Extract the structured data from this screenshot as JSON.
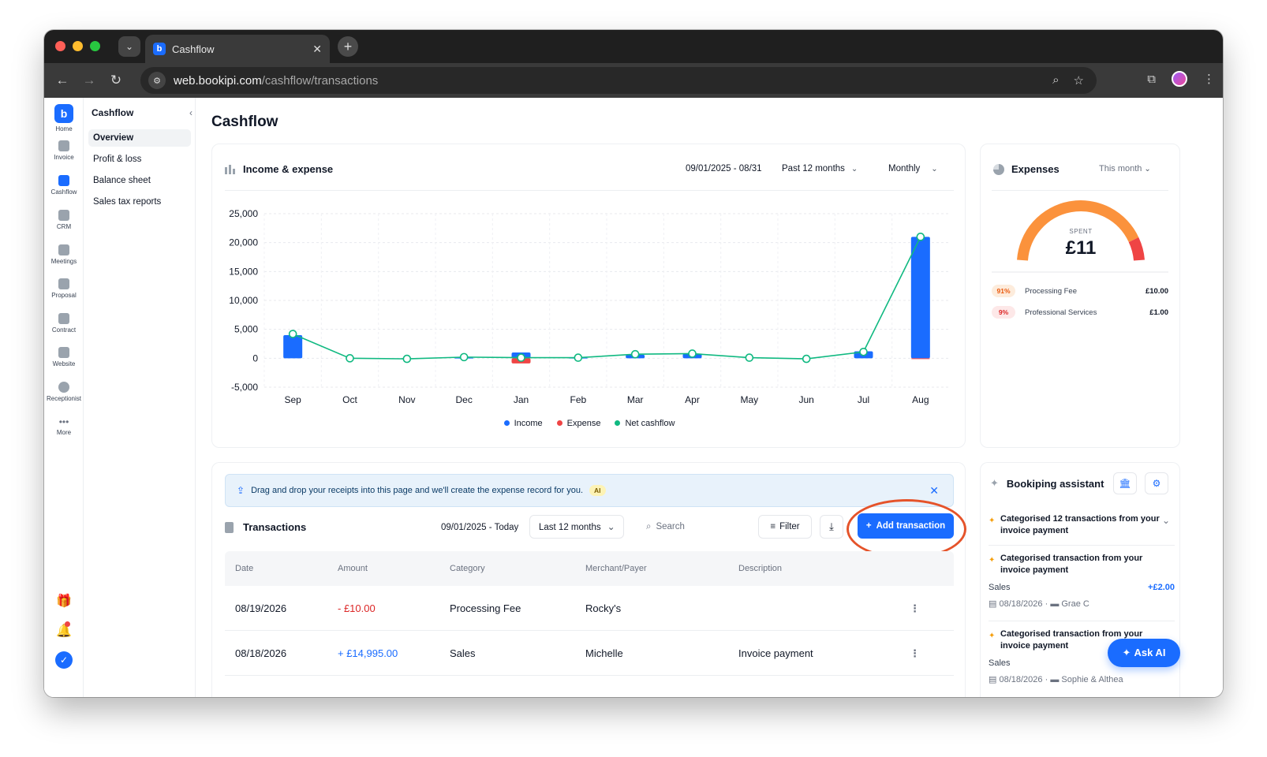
{
  "browser": {
    "tab_title": "Cashflow",
    "url_host": "web.bookipi.com",
    "url_path": "/cashflow/transactions"
  },
  "rail": {
    "items": [
      "Home",
      "Invoice",
      "Cashflow",
      "CRM",
      "Meetings",
      "Proposal",
      "Contract",
      "Website",
      "Receptionist",
      "More"
    ],
    "active": "Cashflow"
  },
  "subnav": {
    "title": "Cashflow",
    "items": [
      "Overview",
      "Profit & loss",
      "Balance sheet",
      "Sales tax reports"
    ],
    "active": "Overview"
  },
  "page": {
    "title": "Cashflow"
  },
  "income_expense": {
    "title": "Income & expense",
    "date_range": "09/01/2025 - 08/31",
    "period": "Past 12 months",
    "frequency": "Monthly",
    "legend": [
      "Income",
      "Expense",
      "Net cashflow"
    ]
  },
  "chart_data": {
    "type": "bar",
    "categories": [
      "Sep",
      "Oct",
      "Nov",
      "Dec",
      "Jan",
      "Feb",
      "Mar",
      "Apr",
      "May",
      "Jun",
      "Jul",
      "Aug"
    ],
    "series": [
      {
        "name": "Income",
        "type": "bar",
        "values": [
          4000,
          0,
          0,
          100,
          1000,
          100,
          600,
          800,
          0,
          0,
          1200,
          21000
        ]
      },
      {
        "name": "Expense",
        "type": "bar",
        "values": [
          0,
          0,
          0,
          0,
          -900,
          0,
          0,
          0,
          0,
          0,
          0,
          -100
        ]
      },
      {
        "name": "Net cashflow",
        "type": "line",
        "values": [
          4200,
          0,
          -100,
          200,
          100,
          100,
          700,
          800,
          100,
          -100,
          1100,
          21000
        ]
      }
    ],
    "yticks": [
      "25,000",
      "20,000",
      "15,000",
      "10,000",
      "5,000",
      "0",
      "-5,000"
    ],
    "ylim": [
      -5000,
      25000
    ],
    "grid": true,
    "legend_position": "bottom",
    "colors": {
      "income": "#1a6cff",
      "expense": "#ef4444",
      "net": "#10b981"
    }
  },
  "expenses": {
    "title": "Expenses",
    "filter": "This month",
    "spent_label": "SPENT",
    "spent_value": "£11",
    "gauge_fraction": 1.0,
    "items": [
      {
        "pct": "91%",
        "name": "Processing Fee",
        "amount": "£10.00"
      },
      {
        "pct": "9%",
        "name": "Professional Services",
        "amount": "£1.00"
      }
    ]
  },
  "transactions": {
    "banner_text": "Drag and drop your receipts into this page and we'll create the expense record for you.",
    "banner_badge": "AI",
    "title": "Transactions",
    "date_range": "09/01/2025 - Today",
    "period": "Last 12 months",
    "search_placeholder": "Search",
    "filter_label": "Filter",
    "add_label": "Add transaction",
    "columns": [
      "Date",
      "Amount",
      "Category",
      "Merchant/Payer",
      "Description"
    ],
    "rows": [
      {
        "date": "08/19/2026",
        "amount": "- £10.00",
        "category": "Processing Fee",
        "merchant": "Rocky's",
        "description": ""
      },
      {
        "date": "08/18/2026",
        "amount": "+ £14,995.00",
        "category": "Sales",
        "merchant": "Michelle",
        "description": "Invoice payment"
      }
    ]
  },
  "assistant": {
    "title": "Bookiping assistant",
    "items": [
      {
        "text": "Categorised 12 transactions from your invoice payment"
      },
      {
        "text": "Categorised transaction from your invoice payment",
        "category": "Sales",
        "amount": "+£2.00",
        "date": "08/18/2026",
        "client": "Grae C"
      },
      {
        "text": "Categorised transaction from your invoice payment",
        "category": "Sales",
        "date": "08/18/2026",
        "client": "Sophie & Althea"
      }
    ],
    "ask_ai_label": "Ask AI"
  }
}
